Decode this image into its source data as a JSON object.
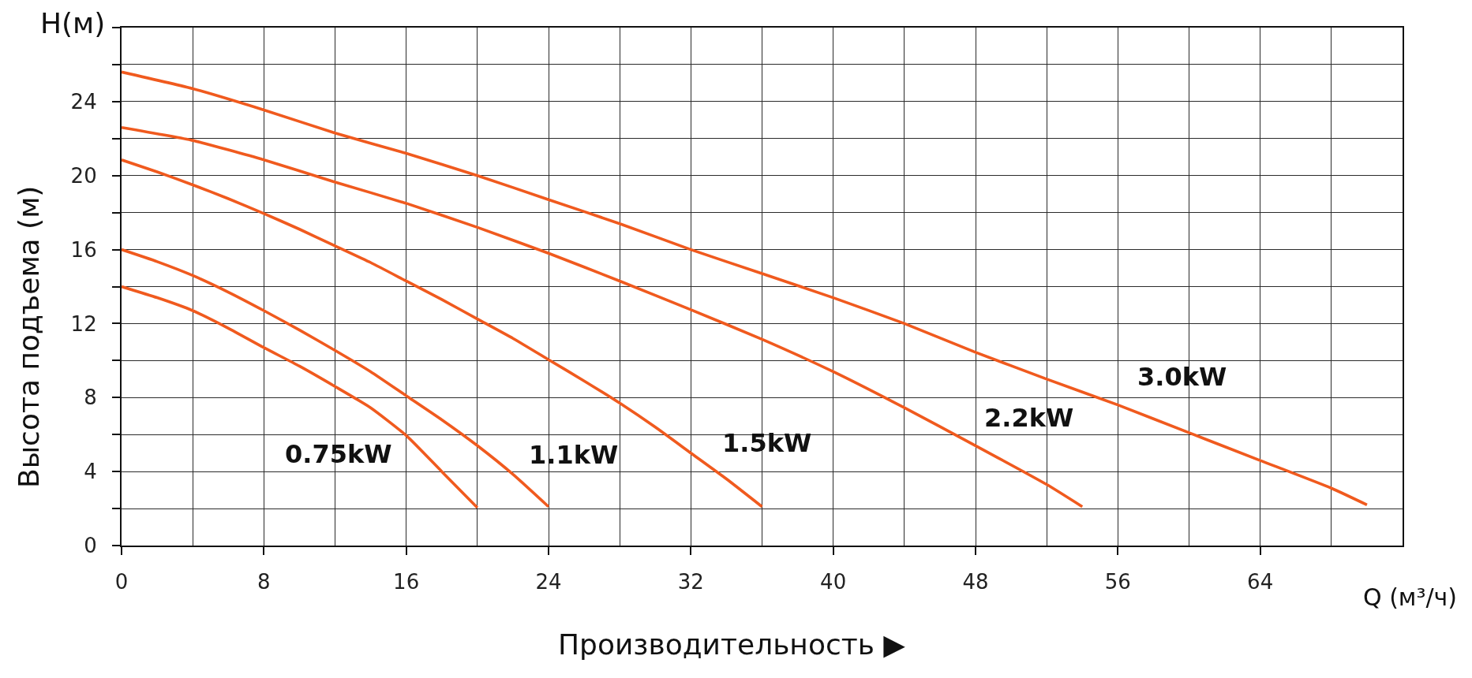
{
  "chart_data": {
    "type": "line",
    "xlabel": "Производительность ▶",
    "ylabel": "Высота подъема (м)",
    "annotations": [
      "H(м)",
      "Q (м³/ч)"
    ],
    "xlim": [
      0,
      72
    ],
    "ylim": [
      0,
      28
    ],
    "xticks": [
      0,
      {
        "value": 4,
        "label": null
      },
      8,
      {
        "value": 12,
        "label": null
      },
      16,
      {
        "value": 20,
        "label": null
      },
      24,
      {
        "value": 28,
        "label": null
      },
      32,
      {
        "value": 36,
        "label": null
      },
      40,
      {
        "value": 44,
        "label": null
      },
      48,
      {
        "value": 52,
        "label": null
      },
      56,
      {
        "value": 60,
        "label": null
      },
      64,
      {
        "value": 68,
        "label": null
      },
      {
        "value": 72,
        "label": null
      }
    ],
    "yticks": [
      0,
      {
        "value": 2,
        "label": null
      },
      4,
      {
        "value": 6,
        "label": null
      },
      8,
      {
        "value": 10,
        "label": null
      },
      12,
      {
        "value": 14,
        "label": null
      },
      16,
      {
        "value": 18,
        "label": null
      },
      20,
      {
        "value": 22,
        "label": null
      },
      24,
      {
        "value": 26,
        "label": null
      },
      {
        "value": 28,
        "label": null
      }
    ],
    "grid": true,
    "line_style": "solid",
    "series": [
      {
        "name": "0.75kW",
        "color": "#f05a1e",
        "x": [
          0,
          2,
          4,
          6,
          8,
          10,
          12,
          14,
          16,
          18,
          20
        ],
        "values": [
          14.0,
          13.4,
          12.7,
          11.75,
          10.7,
          9.7,
          8.6,
          7.45,
          5.95,
          4.0,
          2.05
        ]
      },
      {
        "name": "1.1kW",
        "color": "#f05a1e",
        "x": [
          0,
          2,
          4,
          6,
          8,
          10,
          12,
          14,
          16,
          18,
          20,
          22,
          24
        ],
        "values": [
          16.0,
          15.35,
          14.6,
          13.7,
          12.7,
          11.65,
          10.55,
          9.4,
          8.1,
          6.8,
          5.4,
          3.85,
          2.1
        ]
      },
      {
        "name": "1.5kW",
        "color": "#f05a1e",
        "x": [
          0,
          2,
          4,
          6,
          8,
          10,
          12,
          14,
          16,
          18,
          20,
          22,
          24,
          26,
          28,
          30,
          32,
          34,
          36
        ],
        "values": [
          20.85,
          20.2,
          19.5,
          18.75,
          17.95,
          17.1,
          16.2,
          15.3,
          14.3,
          13.3,
          12.25,
          11.2,
          10.05,
          8.9,
          7.7,
          6.4,
          5.0,
          3.6,
          2.1
        ]
      },
      {
        "name": "2.2kW",
        "color": "#f05a1e",
        "x": [
          0,
          4,
          8,
          12,
          16,
          20,
          24,
          28,
          32,
          36,
          40,
          44,
          48,
          52,
          54
        ],
        "values": [
          22.6,
          21.9,
          20.85,
          19.65,
          18.5,
          17.2,
          15.8,
          14.3,
          12.75,
          11.15,
          9.4,
          7.45,
          5.4,
          3.3,
          2.1
        ]
      },
      {
        "name": "3.0kW",
        "color": "#f05a1e",
        "x": [
          0,
          4,
          8,
          12,
          16,
          20,
          24,
          28,
          32,
          36,
          40,
          44,
          48,
          52,
          56,
          60,
          64,
          68,
          70
        ],
        "values": [
          25.6,
          24.7,
          23.55,
          22.3,
          21.2,
          20.0,
          18.7,
          17.4,
          16.0,
          14.7,
          13.4,
          12.0,
          10.45,
          9.0,
          7.6,
          6.1,
          4.6,
          3.1,
          2.2
        ]
      }
    ]
  }
}
